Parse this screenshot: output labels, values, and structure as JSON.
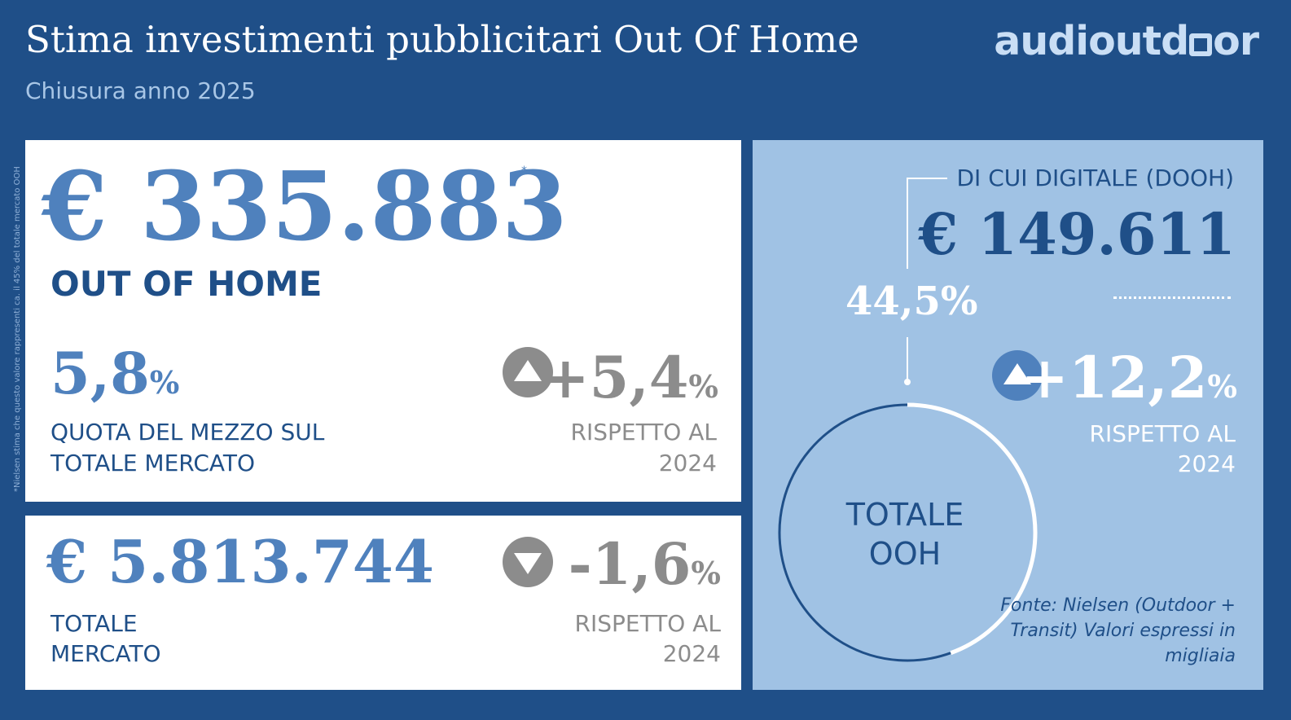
{
  "header": {
    "title": "Stima investimenti pubblicitari Out Of Home",
    "subtitle": "Chiusura anno 2025",
    "logo_text_a": "audioutd",
    "logo_text_b": "or"
  },
  "side_note": "*Nielsen stima che questo valore rappresenti ca. il 45% del totale mercato OOH",
  "ooh": {
    "value": "€ 335.883",
    "asterisk": "*",
    "label": "OUT OF HOME",
    "share_value": "5,8",
    "share_unit": "%",
    "share_label": "QUOTA DEL MEZZO SUL TOTALE MERCATO",
    "change_value": "+5,4",
    "change_unit": "%",
    "change_label": "RISPETTO AL 2024",
    "change_icon": "triangle-up-icon"
  },
  "total_market": {
    "value": "€ 5.813.744",
    "label": "TOTALE MERCATO",
    "change_value": "-1,6",
    "change_unit": "%",
    "change_label": "RISPETTO AL 2024",
    "change_icon": "triangle-down-icon"
  },
  "dooh": {
    "label": "DI CUI DIGITALE (DOOH)",
    "value": "€ 149.611",
    "share_label": "44,5%",
    "change_value": "+12,2",
    "change_unit": "%",
    "change_label": "RISPETTO AL 2024",
    "change_icon": "triangle-up-icon",
    "donut_center_label": "TOTALE OOH",
    "source": "Fonte: Nielsen (Outdoor + Transit) Valori espressi in migliaia"
  },
  "chart_data": {
    "type": "pie",
    "title": "",
    "center_label": "TOTALE OOH",
    "slices": [
      {
        "name": "DI CUI DIGITALE (DOOH)",
        "value": 44.5,
        "color": "#ffffff"
      },
      {
        "name": "",
        "value": 55.5,
        "color": "#1f4f88"
      }
    ],
    "data_labels": [
      "44,5%"
    ]
  },
  "colors": {
    "background": "#1f4f88",
    "accent": "#4f81bd",
    "dooh_panel": "#a0c2e4",
    "grey": "#8c8c8c"
  }
}
